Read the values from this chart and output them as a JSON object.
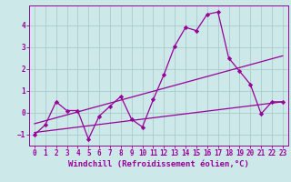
{
  "xlabel": "Windchill (Refroidissement éolien,°C)",
  "bg_color": "#cce8e8",
  "grid_color": "#aacccc",
  "line_color": "#990099",
  "xlim": [
    -0.5,
    23.5
  ],
  "ylim": [
    -1.5,
    4.9
  ],
  "yticks": [
    -1,
    0,
    1,
    2,
    3,
    4
  ],
  "xticks": [
    0,
    1,
    2,
    3,
    4,
    5,
    6,
    7,
    8,
    9,
    10,
    11,
    12,
    13,
    14,
    15,
    16,
    17,
    18,
    19,
    20,
    21,
    22,
    23
  ],
  "data_x": [
    0,
    1,
    2,
    3,
    4,
    5,
    6,
    7,
    8,
    9,
    10,
    11,
    12,
    13,
    14,
    15,
    16,
    17,
    18,
    19,
    20,
    21,
    22,
    23
  ],
  "data_y": [
    -1.0,
    -0.55,
    0.5,
    0.1,
    0.1,
    -1.2,
    -0.15,
    0.3,
    0.75,
    -0.3,
    -0.65,
    0.6,
    1.75,
    3.05,
    3.9,
    3.75,
    4.5,
    4.6,
    2.5,
    1.9,
    1.3,
    -0.05,
    0.5,
    0.5
  ],
  "trend1_x": [
    0,
    23
  ],
  "trend1_y": [
    -0.5,
    2.6
  ],
  "trend2_x": [
    0,
    23
  ],
  "trend2_y": [
    -0.9,
    0.5
  ],
  "tick_fontsize": 5.5,
  "xlabel_fontsize": 6.5
}
